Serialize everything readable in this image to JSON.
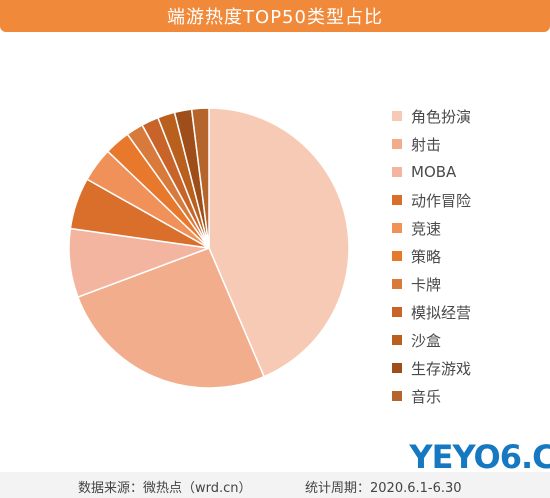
{
  "title": "端游热度TOP50类型占比",
  "chart_data": {
    "type": "pie",
    "title": "端游热度TOP50类型占比",
    "categories": [
      "角色扮演",
      "射击",
      "MOBA",
      "动作冒险",
      "竞速",
      "策略",
      "卡牌",
      "模拟经营",
      "沙盒",
      "生存游戏",
      "音乐"
    ],
    "values": [
      44,
      26,
      8,
      6,
      4,
      3,
      2,
      2,
      2,
      2,
      2
    ],
    "colors": [
      "#f7cab5",
      "#f2ad8c",
      "#f4b5a0",
      "#d96f2a",
      "#ef9159",
      "#e8782c",
      "#d87a3c",
      "#c8642a",
      "#b9601f",
      "#9f4e1a",
      "#b5652b"
    ],
    "legend_position": "right",
    "unit": "%"
  },
  "footer": {
    "source": "数据来源：微热点（wrd.cn）",
    "period": "统计周期：2020.6.1-6.30"
  },
  "logo": "YEYO6.C"
}
